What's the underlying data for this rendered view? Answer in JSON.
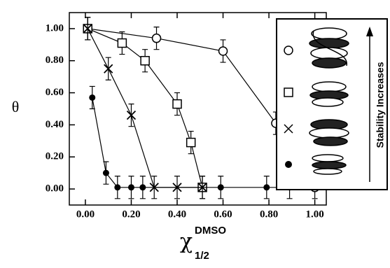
{
  "chart_data": {
    "type": "line",
    "y_label": "θ",
    "x_label": {
      "symbol": "χ",
      "superscript": "DMSO",
      "subscript": "1/2"
    },
    "inset_text": "Stability Increases",
    "xlim": [
      -0.07,
      1.05
    ],
    "ylim": [
      -0.1,
      1.1
    ],
    "xticks": [
      {
        "value": 0,
        "label": "0.00"
      },
      {
        "value": 0.2,
        "label": "0.20"
      },
      {
        "value": 0.4,
        "label": "0.40"
      },
      {
        "value": 0.6,
        "label": "0.60"
      },
      {
        "value": 0.8,
        "label": "0.80"
      },
      {
        "value": 1,
        "label": "1.00"
      }
    ],
    "yticks": [
      {
        "value": 0,
        "label": "0.00"
      },
      {
        "value": 0.2,
        "label": "0.20"
      },
      {
        "value": 0.4,
        "label": "0.40"
      },
      {
        "value": 0.6,
        "label": "0.60"
      },
      {
        "value": 0.8,
        "label": "0.80"
      },
      {
        "value": 1,
        "label": "1.00"
      }
    ],
    "series": [
      {
        "marker": "circle-open",
        "color": "#000000",
        "x": [
          0.01,
          0.31,
          0.6,
          0.83,
          0.94,
          1.0
        ],
        "values": [
          1.0,
          0.94,
          0.86,
          0.41,
          0.17,
          0.01
        ],
        "errors": [
          0.07,
          0.07,
          0.07,
          0.07,
          0.07,
          0.07
        ]
      },
      {
        "marker": "square-open",
        "color": "#000000",
        "x": [
          0.01,
          0.16,
          0.26,
          0.4,
          0.46,
          0.51
        ],
        "values": [
          1.0,
          0.91,
          0.8,
          0.53,
          0.29,
          0.01
        ],
        "errors": [
          0.07,
          0.07,
          0.07,
          0.07,
          0.07,
          0.07
        ]
      },
      {
        "marker": "cross",
        "color": "#000000",
        "x": [
          0.01,
          0.1,
          0.2,
          0.3,
          0.4,
          0.51
        ],
        "values": [
          1.0,
          0.75,
          0.46,
          0.01,
          0.01,
          0.01
        ],
        "errors": [
          0.07,
          0.07,
          0.07,
          0.07,
          0.07,
          0.07
        ]
      },
      {
        "marker": "dot",
        "color": "#000000",
        "x": [
          0.03,
          0.09,
          0.14,
          0.2,
          0.25,
          0.59,
          0.79,
          0.89
        ],
        "values": [
          0.57,
          0.1,
          0.01,
          0.01,
          0.01,
          0.01,
          0.01,
          0.01
        ],
        "errors": [
          0.07,
          0.07,
          0.07,
          0.07,
          0.07,
          0.07,
          0.07,
          0.07
        ]
      }
    ]
  }
}
